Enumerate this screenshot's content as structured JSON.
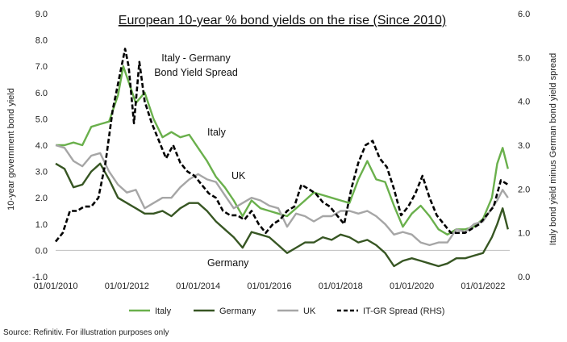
{
  "chart_data": {
    "type": "line",
    "title": "European 10-year % bond yields on the rise (Since 2010)",
    "ylabel_left": "10-year government bond yield",
    "ylabel_right": "Italy bond yield minus German bond yield spread",
    "ylim_left": [
      -1.0,
      9.0
    ],
    "ylim_right": [
      0.0,
      6.0
    ],
    "yticks_left": [
      "-1.0",
      "0.0",
      "1.0",
      "2.0",
      "3.0",
      "4.0",
      "5.0",
      "6.0",
      "7.0",
      "8.0",
      "9.0"
    ],
    "yticks_right": [
      "0.0",
      "1.0",
      "2.0",
      "3.0",
      "4.0",
      "5.0",
      "6.0"
    ],
    "xlim": [
      2010.0,
      2022.75
    ],
    "xticks": [
      {
        "value": 2010,
        "label": "01/01/2010"
      },
      {
        "value": 2012,
        "label": "01/01/2012"
      },
      {
        "value": 2014,
        "label": "01/01/2014"
      },
      {
        "value": 2016,
        "label": "01/01/2016"
      },
      {
        "value": 2018,
        "label": "01/01/2018"
      },
      {
        "value": 2020,
        "label": "01/01/2020"
      },
      {
        "value": 2022,
        "label": "01/01/2022"
      }
    ],
    "annotations": [
      {
        "line1": "Italy - Germany",
        "line2": "Bond Yield Spread"
      },
      {
        "line1": "Italy"
      },
      {
        "line1": "UK"
      },
      {
        "line1": "Germany"
      }
    ],
    "source": "Source: Refinitiv. For illustration purposes only",
    "grid": false,
    "legend_placement": "bottom",
    "series": [
      {
        "name": "Italy",
        "axis": "left",
        "color": "#6ab04c",
        "style": "solid",
        "x": [
          2010.0,
          2010.25,
          2010.5,
          2010.75,
          2011.0,
          2011.25,
          2011.5,
          2011.75,
          2011.9,
          2012.0,
          2012.25,
          2012.5,
          2012.75,
          2013.0,
          2013.25,
          2013.5,
          2013.75,
          2014.0,
          2014.25,
          2014.5,
          2014.75,
          2015.0,
          2015.25,
          2015.5,
          2015.75,
          2016.0,
          2016.25,
          2016.5,
          2016.75,
          2017.0,
          2017.25,
          2017.5,
          2017.75,
          2018.0,
          2018.25,
          2018.5,
          2018.75,
          2019.0,
          2019.25,
          2019.5,
          2019.75,
          2020.0,
          2020.25,
          2020.5,
          2020.75,
          2021.0,
          2021.25,
          2021.5,
          2021.75,
          2022.0,
          2022.25,
          2022.4,
          2022.55,
          2022.7
        ],
        "y": [
          4.0,
          4.0,
          4.1,
          4.0,
          4.7,
          4.8,
          4.9,
          5.9,
          7.0,
          6.6,
          5.6,
          6.0,
          5.0,
          4.3,
          4.5,
          4.3,
          4.4,
          3.9,
          3.4,
          2.8,
          2.4,
          1.9,
          1.3,
          1.9,
          1.6,
          1.5,
          1.4,
          1.3,
          1.6,
          1.9,
          2.2,
          2.1,
          2.0,
          1.9,
          1.8,
          2.7,
          3.4,
          2.7,
          2.6,
          1.7,
          0.9,
          1.4,
          1.7,
          1.3,
          0.8,
          0.6,
          0.8,
          0.8,
          0.9,
          1.2,
          2.0,
          3.3,
          3.9,
          3.1
        ]
      },
      {
        "name": "Germany",
        "axis": "left",
        "color": "#375623",
        "style": "solid",
        "x": [
          2010.0,
          2010.25,
          2010.5,
          2010.75,
          2011.0,
          2011.25,
          2011.5,
          2011.75,
          2012.0,
          2012.25,
          2012.5,
          2012.75,
          2013.0,
          2013.25,
          2013.5,
          2013.75,
          2014.0,
          2014.25,
          2014.5,
          2014.75,
          2015.0,
          2015.25,
          2015.5,
          2015.75,
          2016.0,
          2016.25,
          2016.5,
          2016.75,
          2017.0,
          2017.25,
          2017.5,
          2017.75,
          2018.0,
          2018.25,
          2018.5,
          2018.75,
          2019.0,
          2019.25,
          2019.5,
          2019.75,
          2020.0,
          2020.25,
          2020.5,
          2020.75,
          2021.0,
          2021.25,
          2021.5,
          2021.75,
          2022.0,
          2022.25,
          2022.4,
          2022.55,
          2022.7
        ],
        "y": [
          3.3,
          3.1,
          2.4,
          2.5,
          3.0,
          3.3,
          2.7,
          2.0,
          1.8,
          1.6,
          1.4,
          1.4,
          1.5,
          1.3,
          1.6,
          1.8,
          1.8,
          1.5,
          1.1,
          0.8,
          0.5,
          0.1,
          0.7,
          0.6,
          0.5,
          0.2,
          -0.1,
          0.1,
          0.3,
          0.3,
          0.5,
          0.4,
          0.6,
          0.5,
          0.3,
          0.4,
          0.2,
          -0.1,
          -0.6,
          -0.4,
          -0.3,
          -0.4,
          -0.5,
          -0.6,
          -0.5,
          -0.3,
          -0.3,
          -0.2,
          -0.1,
          0.5,
          1.0,
          1.6,
          0.8
        ]
      },
      {
        "name": "UK",
        "axis": "left",
        "color": "#a6a6a6",
        "style": "solid",
        "x": [
          2010.0,
          2010.25,
          2010.5,
          2010.75,
          2011.0,
          2011.25,
          2011.5,
          2011.75,
          2012.0,
          2012.25,
          2012.5,
          2012.75,
          2013.0,
          2013.25,
          2013.5,
          2013.75,
          2014.0,
          2014.25,
          2014.5,
          2014.75,
          2015.0,
          2015.25,
          2015.5,
          2015.75,
          2016.0,
          2016.25,
          2016.5,
          2016.75,
          2017.0,
          2017.25,
          2017.5,
          2017.75,
          2018.0,
          2018.25,
          2018.5,
          2018.75,
          2019.0,
          2019.25,
          2019.5,
          2019.75,
          2020.0,
          2020.25,
          2020.5,
          2020.75,
          2021.0,
          2021.25,
          2021.5,
          2021.75,
          2022.0,
          2022.25,
          2022.4,
          2022.55,
          2022.7
        ],
        "y": [
          4.0,
          3.9,
          3.4,
          3.2,
          3.6,
          3.7,
          3.0,
          2.5,
          2.2,
          2.3,
          1.6,
          1.8,
          2.0,
          2.0,
          2.4,
          2.7,
          2.9,
          2.7,
          2.6,
          2.1,
          1.6,
          1.8,
          2.0,
          1.9,
          1.7,
          1.6,
          0.9,
          1.4,
          1.3,
          1.1,
          1.3,
          1.3,
          1.5,
          1.5,
          1.4,
          1.5,
          1.3,
          1.0,
          0.6,
          0.7,
          0.6,
          0.3,
          0.2,
          0.3,
          0.3,
          0.8,
          0.7,
          1.0,
          1.1,
          1.6,
          1.9,
          2.3,
          2.0
        ]
      },
      {
        "name": "IT-GR Spread (RHS)",
        "axis": "right",
        "color": "#000000",
        "style": "dashed",
        "x": [
          2010.0,
          2010.2,
          2010.4,
          2010.6,
          2010.8,
          2011.0,
          2011.2,
          2011.4,
          2011.6,
          2011.8,
          2011.95,
          2012.05,
          2012.2,
          2012.35,
          2012.5,
          2012.7,
          2012.9,
          2013.1,
          2013.3,
          2013.5,
          2013.7,
          2013.9,
          2014.1,
          2014.3,
          2014.5,
          2014.7,
          2014.9,
          2015.1,
          2015.3,
          2015.5,
          2015.7,
          2015.9,
          2016.1,
          2016.3,
          2016.5,
          2016.7,
          2016.9,
          2017.1,
          2017.3,
          2017.5,
          2017.7,
          2017.9,
          2018.1,
          2018.3,
          2018.5,
          2018.7,
          2018.9,
          2019.1,
          2019.3,
          2019.5,
          2019.7,
          2019.9,
          2020.1,
          2020.3,
          2020.5,
          2020.7,
          2020.9,
          2021.1,
          2021.3,
          2021.5,
          2021.7,
          2021.9,
          2022.1,
          2022.3,
          2022.5,
          2022.7
        ],
        "y": [
          0.8,
          1.0,
          1.5,
          1.5,
          1.6,
          1.6,
          1.8,
          2.6,
          3.8,
          4.6,
          5.2,
          4.8,
          3.5,
          4.9,
          4.0,
          3.5,
          3.1,
          2.7,
          3.0,
          2.6,
          2.4,
          2.3,
          2.1,
          1.9,
          1.8,
          1.5,
          1.4,
          1.4,
          1.3,
          1.5,
          1.2,
          1.0,
          1.2,
          1.3,
          1.5,
          1.6,
          2.1,
          2.0,
          1.9,
          1.7,
          1.6,
          1.4,
          1.2,
          2.0,
          2.6,
          3.0,
          3.1,
          2.7,
          2.5,
          2.0,
          1.4,
          1.6,
          1.9,
          2.3,
          1.8,
          1.4,
          1.2,
          1.0,
          1.0,
          1.0,
          1.1,
          1.2,
          1.4,
          1.6,
          2.2,
          2.1
        ]
      }
    ]
  }
}
